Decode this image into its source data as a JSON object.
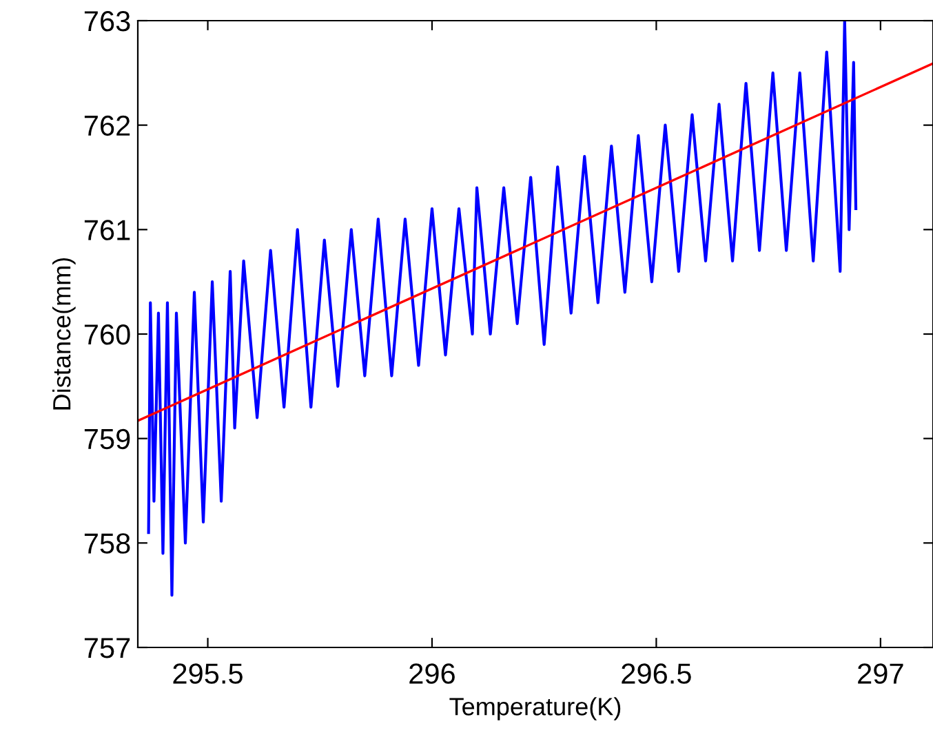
{
  "chart_data": {
    "type": "line",
    "xlabel": "Temperature(K)",
    "ylabel": "Distance(mm)",
    "xlim": [
      295.344,
      297.117
    ],
    "ylim": [
      757,
      763
    ],
    "xticks": [
      295.5,
      296,
      296.5,
      297
    ],
    "yticks": [
      757,
      758,
      759,
      760,
      761,
      762,
      763
    ],
    "marker": "none",
    "line_style": "solid",
    "series": [
      {
        "color": "#0000ff",
        "x": [
          295.368,
          295.372,
          295.38,
          295.39,
          295.4,
          295.41,
          295.42,
          295.43,
          295.45,
          295.47,
          295.49,
          295.51,
          295.53,
          295.55,
          295.56,
          295.58,
          295.61,
          295.64,
          295.67,
          295.7,
          295.73,
          295.76,
          295.79,
          295.82,
          295.85,
          295.88,
          295.91,
          295.94,
          295.97,
          296.0,
          296.03,
          296.06,
          296.09,
          296.1,
          296.13,
          296.16,
          296.19,
          296.22,
          296.25,
          296.28,
          296.31,
          296.34,
          296.37,
          296.4,
          296.43,
          296.46,
          296.49,
          296.52,
          296.55,
          296.58,
          296.61,
          296.64,
          296.67,
          296.7,
          296.73,
          296.76,
          296.79,
          296.82,
          296.85,
          296.88,
          296.91,
          296.92,
          296.93,
          296.94,
          296.945
        ],
        "values": [
          758.1,
          760.3,
          758.4,
          760.2,
          757.9,
          760.3,
          757.5,
          760.2,
          758.0,
          760.4,
          758.2,
          760.5,
          758.4,
          760.6,
          759.1,
          760.7,
          759.2,
          760.8,
          759.3,
          761.0,
          759.3,
          760.9,
          759.5,
          761.0,
          759.6,
          761.1,
          759.6,
          761.1,
          759.7,
          761.2,
          759.8,
          761.2,
          760.0,
          761.4,
          760.0,
          761.4,
          760.1,
          761.5,
          759.9,
          761.6,
          760.2,
          761.7,
          760.3,
          761.8,
          760.4,
          761.9,
          760.5,
          762.0,
          760.6,
          762.1,
          760.7,
          762.2,
          760.7,
          762.4,
          760.8,
          762.5,
          760.8,
          762.5,
          760.7,
          762.7,
          760.6,
          763.0,
          761.0,
          762.6,
          761.2
        ]
      },
      {
        "type": "line",
        "color": "#ff0000",
        "x": [
          295.344,
          297.117
        ],
        "values": [
          759.17,
          762.59
        ]
      }
    ]
  }
}
